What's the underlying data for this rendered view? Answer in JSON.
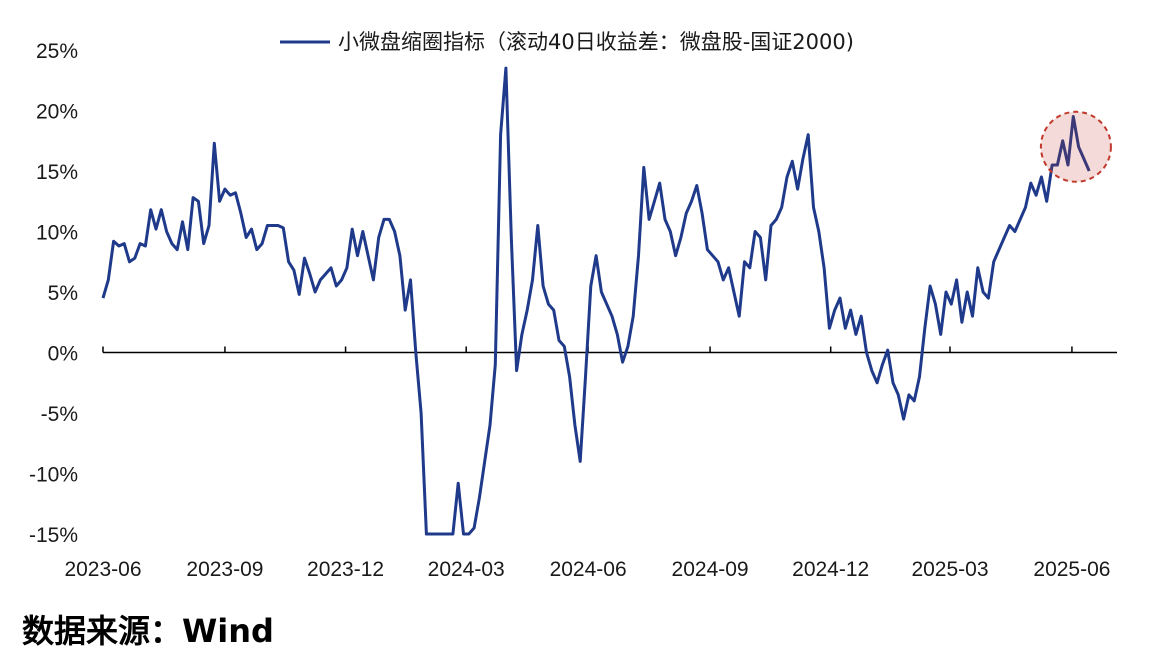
{
  "chart_data": {
    "type": "line",
    "title": "",
    "xlabel": "",
    "ylabel": "",
    "legend_position": "top-center",
    "grid": false,
    "ylim": [
      -15,
      25
    ],
    "xlim": [
      "2023-06-01",
      "2025-07-05"
    ],
    "y_ticks": [
      25,
      20,
      15,
      10,
      5,
      0,
      -5,
      -10,
      -15
    ],
    "y_tick_labels": [
      "25%",
      "20%",
      "15%",
      "10%",
      "5%",
      "0%",
      "-5%",
      "-10%",
      "-15%"
    ],
    "x_ticks": [
      "2023-06-01",
      "2023-09-01",
      "2023-12-01",
      "2024-03-01",
      "2024-06-01",
      "2024-09-01",
      "2024-12-01",
      "2025-03-01",
      "2025-06-01"
    ],
    "x_tick_labels": [
      "2023-06",
      "2023-09",
      "2023-12",
      "2024-03",
      "2024-06",
      "2024-09",
      "2024-12",
      "2025-03",
      "2025-06"
    ],
    "series": [
      {
        "name": "小微盘缩圈指标（滚动40日收益差：微盘股-国证2000)",
        "color": "#1f3a8a",
        "points": [
          [
            "2023-06-01",
            4.5
          ],
          [
            "2023-06-05",
            6.0
          ],
          [
            "2023-06-09",
            9.2
          ],
          [
            "2023-06-13",
            8.8
          ],
          [
            "2023-06-17",
            9.0
          ],
          [
            "2023-06-21",
            7.5
          ],
          [
            "2023-06-25",
            7.8
          ],
          [
            "2023-06-29",
            9.0
          ],
          [
            "2023-07-03",
            8.8
          ],
          [
            "2023-07-07",
            11.8
          ],
          [
            "2023-07-11",
            10.2
          ],
          [
            "2023-07-15",
            11.8
          ],
          [
            "2023-07-19",
            10.0
          ],
          [
            "2023-07-23",
            9.0
          ],
          [
            "2023-07-27",
            8.5
          ],
          [
            "2023-07-31",
            10.8
          ],
          [
            "2023-08-04",
            8.5
          ],
          [
            "2023-08-08",
            12.8
          ],
          [
            "2023-08-12",
            12.5
          ],
          [
            "2023-08-16",
            9.0
          ],
          [
            "2023-08-20",
            10.5
          ],
          [
            "2023-08-24",
            17.3
          ],
          [
            "2023-08-28",
            12.5
          ],
          [
            "2023-09-01",
            13.5
          ],
          [
            "2023-09-05",
            13.0
          ],
          [
            "2023-09-09",
            13.2
          ],
          [
            "2023-09-13",
            11.5
          ],
          [
            "2023-09-17",
            9.5
          ],
          [
            "2023-09-21",
            10.2
          ],
          [
            "2023-09-25",
            8.5
          ],
          [
            "2023-09-29",
            9.0
          ],
          [
            "2023-10-03",
            10.5
          ],
          [
            "2023-10-07",
            10.5
          ],
          [
            "2023-10-11",
            10.5
          ],
          [
            "2023-10-15",
            10.3
          ],
          [
            "2023-10-19",
            7.5
          ],
          [
            "2023-10-23",
            6.8
          ],
          [
            "2023-10-27",
            4.8
          ],
          [
            "2023-10-31",
            7.8
          ],
          [
            "2023-11-04",
            6.5
          ],
          [
            "2023-11-08",
            5.0
          ],
          [
            "2023-11-12",
            6.0
          ],
          [
            "2023-11-16",
            6.5
          ],
          [
            "2023-11-20",
            7.0
          ],
          [
            "2023-11-24",
            5.5
          ],
          [
            "2023-11-28",
            6.0
          ],
          [
            "2023-12-02",
            7.0
          ],
          [
            "2023-12-06",
            10.2
          ],
          [
            "2023-12-10",
            8.0
          ],
          [
            "2023-12-14",
            10.0
          ],
          [
            "2023-12-18",
            8.0
          ],
          [
            "2023-12-22",
            6.0
          ],
          [
            "2023-12-26",
            9.5
          ],
          [
            "2023-12-30",
            11.0
          ],
          [
            "2024-01-03",
            11.0
          ],
          [
            "2024-01-07",
            10.0
          ],
          [
            "2024-01-11",
            8.0
          ],
          [
            "2024-01-15",
            3.5
          ],
          [
            "2024-01-19",
            6.0
          ],
          [
            "2024-01-23",
            0.0
          ],
          [
            "2024-01-27",
            -5.0
          ],
          [
            "2024-01-31",
            -16.0
          ],
          [
            "2024-02-04",
            -16.0
          ],
          [
            "2024-02-08",
            -16.0
          ],
          [
            "2024-02-12",
            -16.0
          ],
          [
            "2024-02-16",
            -16.0
          ],
          [
            "2024-02-20",
            -16.0
          ],
          [
            "2024-02-24",
            -10.8
          ],
          [
            "2024-02-28",
            -15.0
          ],
          [
            "2024-03-03",
            -16.0
          ],
          [
            "2024-03-07",
            -14.5
          ],
          [
            "2024-03-11",
            -12.0
          ],
          [
            "2024-03-15",
            -9.0
          ],
          [
            "2024-03-19",
            -6.0
          ],
          [
            "2024-03-23",
            -1.0
          ],
          [
            "2024-03-27",
            18.0
          ],
          [
            "2024-03-31",
            23.5
          ],
          [
            "2024-04-04",
            9.5
          ],
          [
            "2024-04-08",
            -1.5
          ],
          [
            "2024-04-12",
            1.5
          ],
          [
            "2024-04-16",
            3.5
          ],
          [
            "2024-04-20",
            6.0
          ],
          [
            "2024-04-24",
            10.5
          ],
          [
            "2024-04-28",
            5.5
          ],
          [
            "2024-05-02",
            4.0
          ],
          [
            "2024-05-06",
            3.5
          ],
          [
            "2024-05-10",
            1.0
          ],
          [
            "2024-05-14",
            0.5
          ],
          [
            "2024-05-18",
            -2.0
          ],
          [
            "2024-05-22",
            -6.0
          ],
          [
            "2024-05-26",
            -9.0
          ],
          [
            "2024-05-30",
            -2.0
          ],
          [
            "2024-06-03",
            5.5
          ],
          [
            "2024-06-07",
            8.0
          ],
          [
            "2024-06-11",
            5.0
          ],
          [
            "2024-06-15",
            4.0
          ],
          [
            "2024-06-19",
            3.0
          ],
          [
            "2024-06-23",
            1.5
          ],
          [
            "2024-06-27",
            -0.8
          ],
          [
            "2024-07-01",
            0.5
          ],
          [
            "2024-07-05",
            3.0
          ],
          [
            "2024-07-09",
            8.0
          ],
          [
            "2024-07-13",
            15.3
          ],
          [
            "2024-07-17",
            11.0
          ],
          [
            "2024-07-21",
            12.5
          ],
          [
            "2024-07-25",
            14.0
          ],
          [
            "2024-07-29",
            11.0
          ],
          [
            "2024-08-02",
            10.0
          ],
          [
            "2024-08-06",
            8.0
          ],
          [
            "2024-08-10",
            9.5
          ],
          [
            "2024-08-14",
            11.5
          ],
          [
            "2024-08-18",
            12.5
          ],
          [
            "2024-08-22",
            13.8
          ],
          [
            "2024-08-26",
            11.5
          ],
          [
            "2024-08-30",
            8.5
          ],
          [
            "2024-09-03",
            8.0
          ],
          [
            "2024-09-07",
            7.5
          ],
          [
            "2024-09-11",
            6.0
          ],
          [
            "2024-09-15",
            7.0
          ],
          [
            "2024-09-19",
            5.0
          ],
          [
            "2024-09-23",
            3.0
          ],
          [
            "2024-09-27",
            7.5
          ],
          [
            "2024-10-01",
            7.0
          ],
          [
            "2024-10-05",
            10.0
          ],
          [
            "2024-10-09",
            9.5
          ],
          [
            "2024-10-13",
            6.0
          ],
          [
            "2024-10-17",
            10.5
          ],
          [
            "2024-10-21",
            11.0
          ],
          [
            "2024-10-25",
            12.0
          ],
          [
            "2024-10-29",
            14.5
          ],
          [
            "2024-11-02",
            15.8
          ],
          [
            "2024-11-06",
            13.5
          ],
          [
            "2024-11-10",
            16.0
          ],
          [
            "2024-11-14",
            18.0
          ],
          [
            "2024-11-18",
            12.0
          ],
          [
            "2024-11-22",
            10.0
          ],
          [
            "2024-11-26",
            7.0
          ],
          [
            "2024-11-30",
            2.0
          ],
          [
            "2024-12-04",
            3.5
          ],
          [
            "2024-12-08",
            4.5
          ],
          [
            "2024-12-12",
            2.0
          ],
          [
            "2024-12-16",
            3.5
          ],
          [
            "2024-12-20",
            1.5
          ],
          [
            "2024-12-24",
            3.0
          ],
          [
            "2024-12-28",
            0.0
          ],
          [
            "2025-01-01",
            -1.5
          ],
          [
            "2025-01-05",
            -2.5
          ],
          [
            "2025-01-09",
            -1.0
          ],
          [
            "2025-01-13",
            0.2
          ],
          [
            "2025-01-17",
            -2.5
          ],
          [
            "2025-01-21",
            -3.5
          ],
          [
            "2025-01-25",
            -5.5
          ],
          [
            "2025-01-29",
            -3.5
          ],
          [
            "2025-02-02",
            -4.0
          ],
          [
            "2025-02-06",
            -2.0
          ],
          [
            "2025-02-10",
            2.0
          ],
          [
            "2025-02-14",
            5.5
          ],
          [
            "2025-02-18",
            4.0
          ],
          [
            "2025-02-22",
            1.5
          ],
          [
            "2025-02-26",
            5.0
          ],
          [
            "2025-03-02",
            4.0
          ],
          [
            "2025-03-06",
            6.0
          ],
          [
            "2025-03-10",
            2.5
          ],
          [
            "2025-03-14",
            5.0
          ],
          [
            "2025-03-18",
            3.0
          ],
          [
            "2025-03-22",
            7.0
          ],
          [
            "2025-03-26",
            5.0
          ],
          [
            "2025-03-30",
            4.5
          ],
          [
            "2025-04-03",
            7.5
          ],
          [
            "2025-04-07",
            8.5
          ],
          [
            "2025-04-11",
            9.5
          ],
          [
            "2025-04-15",
            10.5
          ],
          [
            "2025-04-19",
            10.0
          ],
          [
            "2025-04-23",
            11.0
          ],
          [
            "2025-04-27",
            12.0
          ],
          [
            "2025-05-01",
            14.0
          ],
          [
            "2025-05-05",
            13.0
          ],
          [
            "2025-05-09",
            14.5
          ],
          [
            "2025-05-13",
            12.5
          ],
          [
            "2025-05-17",
            15.5
          ],
          [
            "2025-05-21",
            15.5
          ],
          [
            "2025-05-25",
            17.5
          ],
          [
            "2025-05-29",
            15.5
          ],
          [
            "2025-06-02",
            19.5
          ],
          [
            "2025-06-06",
            17.0
          ],
          [
            "2025-06-10",
            16.0
          ],
          [
            "2025-06-14",
            15.0
          ]
        ]
      }
    ],
    "annotations": [
      {
        "type": "circle",
        "center": [
          "2025-06-04",
          17.0
        ],
        "color": "#c0392b"
      }
    ]
  },
  "source": "数据来源：Wind"
}
